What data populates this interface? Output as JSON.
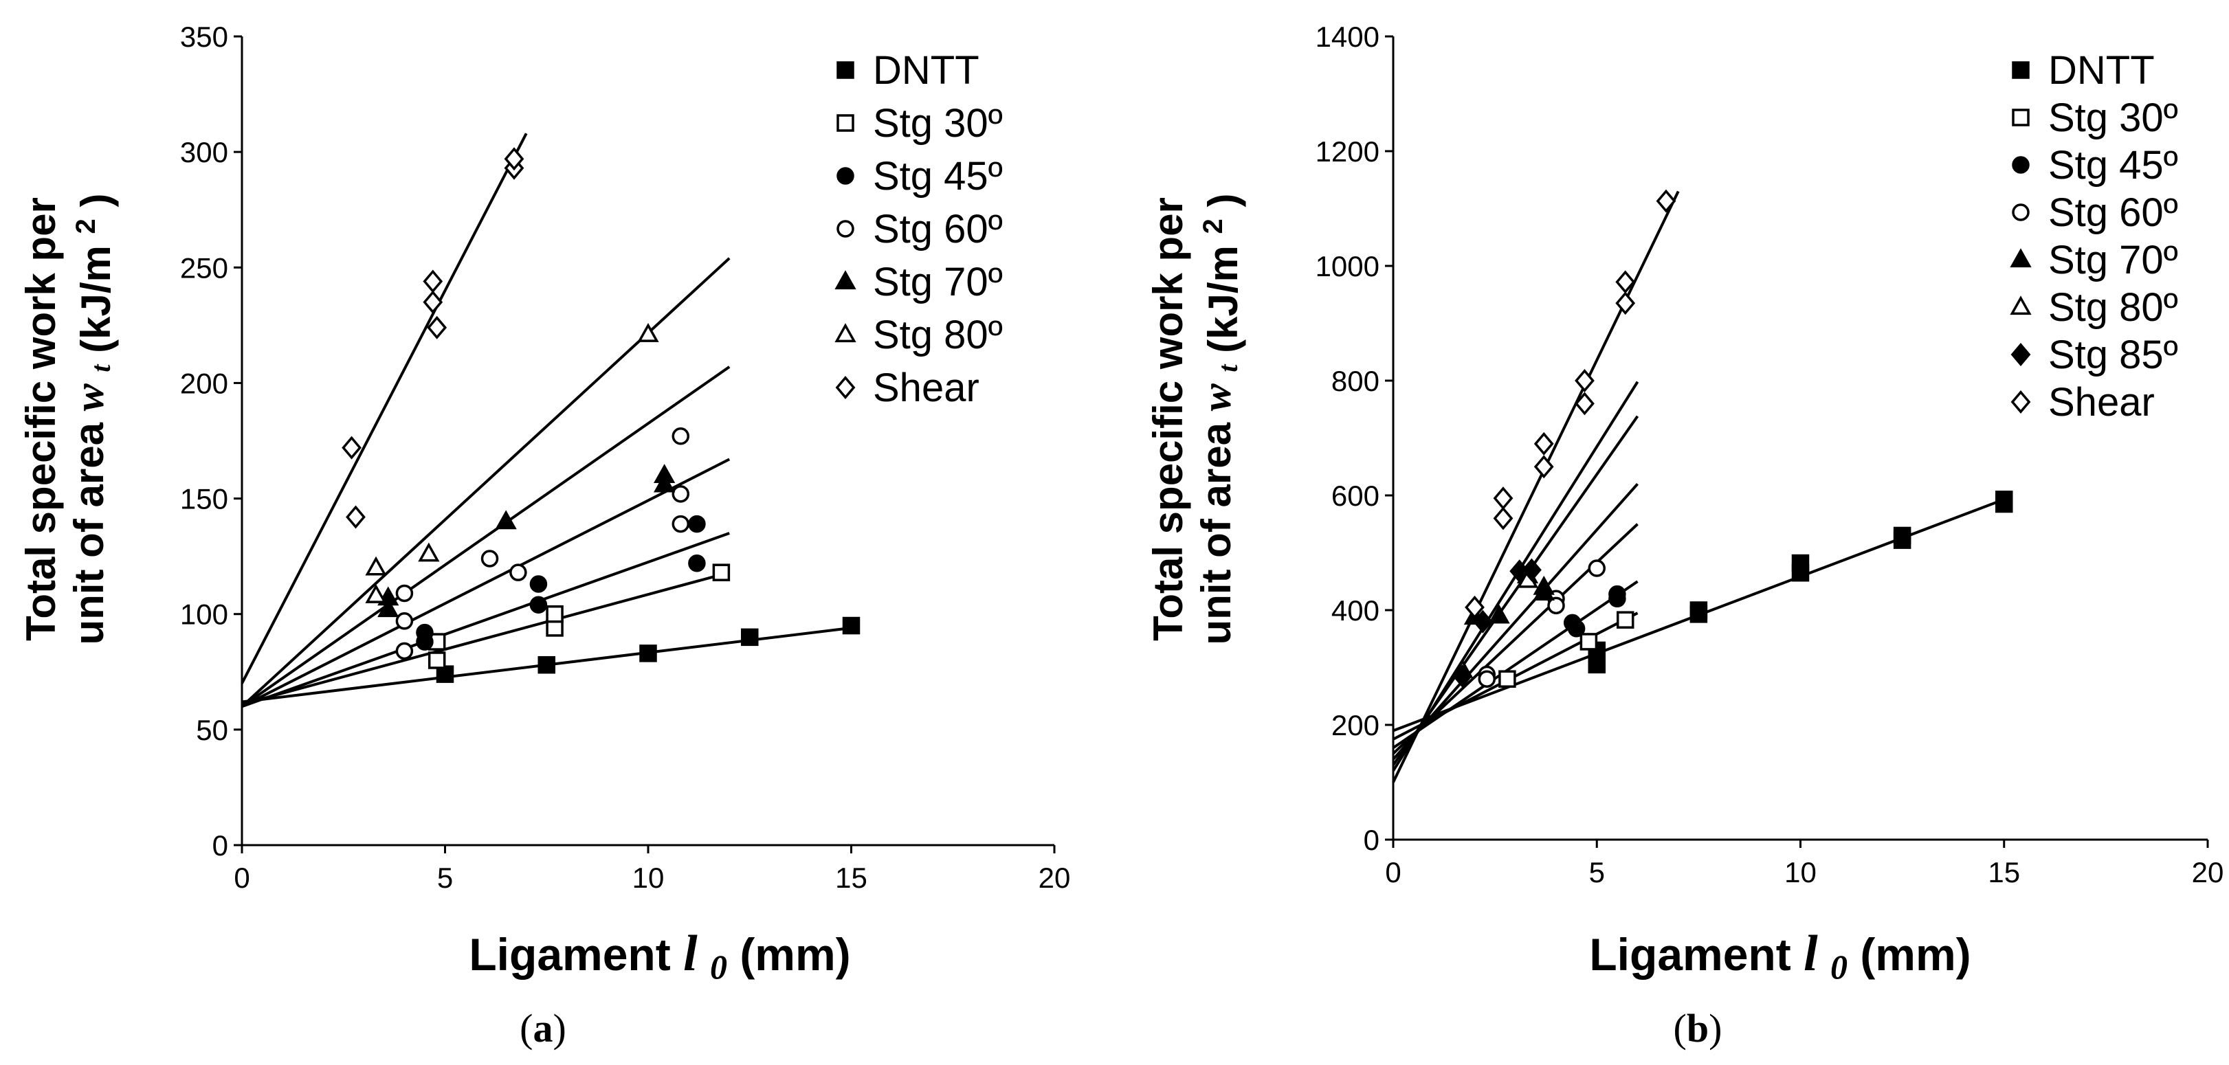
{
  "chart_data": [
    {
      "type": "scatter",
      "caption_prefix": "(",
      "caption_letter": "a",
      "caption_suffix": ")",
      "ylabel_line1": "Total specific work per",
      "ylabel_line2_pre": "unit of area",
      "ylabel_var": "w",
      "ylabel_sub": "t",
      "ylabel_unit_pre": "(kJ/m",
      "ylabel_unit_sup": "2",
      "ylabel_unit_post": ")",
      "xlabel_pre": "Ligament",
      "xlabel_var": "l",
      "xlabel_sub": "0",
      "xlabel_unit": "(mm)",
      "xlim": [
        0,
        20
      ],
      "ylim": [
        0,
        350
      ],
      "xticks": [
        "0",
        "5",
        "10",
        "15",
        "20"
      ],
      "yticks": [
        "0",
        "50",
        "100",
        "150",
        "200",
        "250",
        "300",
        "350"
      ],
      "grid": false,
      "legend_position": "top-right",
      "series": [
        {
          "name": "DNTT",
          "marker": "square-filled",
          "points": [
            [
              5.0,
              74
            ],
            [
              7.5,
              78
            ],
            [
              10.0,
              83
            ],
            [
              12.5,
              90
            ],
            [
              15.0,
              95
            ]
          ],
          "fit": [
            [
              0,
              62
            ],
            [
              15,
              94
            ]
          ]
        },
        {
          "name": "Stg 30º",
          "marker": "square-open",
          "points": [
            [
              4.8,
              80
            ],
            [
              4.8,
              88
            ],
            [
              7.7,
              94
            ],
            [
              7.7,
              100
            ],
            [
              11.8,
              118
            ]
          ],
          "fit": [
            [
              0,
              61
            ],
            [
              12,
              118
            ]
          ]
        },
        {
          "name": "Stg 45º",
          "marker": "circle-filled",
          "points": [
            [
              4.5,
              88
            ],
            [
              4.5,
              92
            ],
            [
              7.3,
              104
            ],
            [
              7.3,
              113
            ],
            [
              11.2,
              122
            ],
            [
              11.2,
              139
            ]
          ],
          "fit": [
            [
              0,
              60
            ],
            [
              12,
              135
            ]
          ]
        },
        {
          "name": "Stg 60º",
          "marker": "circle-open",
          "points": [
            [
              4.0,
              84
            ],
            [
              4.0,
              97
            ],
            [
              4.0,
              109
            ],
            [
              6.1,
              124
            ],
            [
              6.8,
              118
            ],
            [
              10.8,
              139
            ],
            [
              10.8,
              152
            ],
            [
              10.8,
              177
            ]
          ],
          "fit": [
            [
              0,
              60
            ],
            [
              12,
              167
            ]
          ]
        },
        {
          "name": "Stg 70º",
          "marker": "triangle-filled",
          "points": [
            [
              3.6,
              102
            ],
            [
              3.6,
              107
            ],
            [
              6.5,
              140
            ],
            [
              10.4,
              156
            ],
            [
              10.4,
              160
            ]
          ],
          "fit": [
            [
              0,
              60
            ],
            [
              12,
              207
            ]
          ]
        },
        {
          "name": "Stg 80º",
          "marker": "triangle-open",
          "points": [
            [
              3.3,
              108
            ],
            [
              3.3,
              120
            ],
            [
              4.6,
              126
            ],
            [
              10.0,
              221
            ]
          ],
          "fit": [
            [
              0,
              60
            ],
            [
              12,
              254
            ]
          ]
        },
        {
          "name": "Shear",
          "marker": "diamond-open",
          "points": [
            [
              2.7,
              172
            ],
            [
              2.8,
              142
            ],
            [
              4.7,
              235
            ],
            [
              4.7,
              244
            ],
            [
              4.8,
              224
            ],
            [
              6.7,
              293
            ],
            [
              6.7,
              297
            ]
          ],
          "fit": [
            [
              0,
              70
            ],
            [
              7,
              308
            ]
          ]
        }
      ]
    },
    {
      "type": "scatter",
      "caption_prefix": "(",
      "caption_letter": "b",
      "caption_suffix": ")",
      "ylabel_line1": "Total specific work per",
      "ylabel_line2_pre": "unit of area",
      "ylabel_var": "w",
      "ylabel_sub": "t",
      "ylabel_unit_pre": "(kJ/m",
      "ylabel_unit_sup": "2",
      "ylabel_unit_post": ")",
      "xlabel_pre": "Ligament",
      "xlabel_var": "l",
      "xlabel_sub": "0",
      "xlabel_unit": "(mm)",
      "xlim": [
        0,
        20
      ],
      "ylim": [
        0,
        1400
      ],
      "xticks": [
        "0",
        "5",
        "10",
        "15",
        "20"
      ],
      "yticks": [
        "0",
        "200",
        "400",
        "600",
        "800",
        "1000",
        "1200",
        "1400"
      ],
      "grid": false,
      "legend_position": "top-right",
      "series": [
        {
          "name": "DNTT",
          "marker": "square-filled",
          "points": [
            [
              5.0,
              305
            ],
            [
              5.0,
              330
            ],
            [
              7.5,
              393
            ],
            [
              7.5,
              400
            ],
            [
              10.0,
              465
            ],
            [
              10.0,
              482
            ],
            [
              12.5,
              522
            ],
            [
              12.5,
              530
            ],
            [
              15.0,
              585
            ],
            [
              15.0,
              593
            ]
          ],
          "fit": [
            [
              0,
              190
            ],
            [
              15,
              593
            ]
          ]
        },
        {
          "name": "Stg 30º",
          "marker": "square-open",
          "points": [
            [
              2.8,
              280
            ],
            [
              4.8,
              345
            ],
            [
              5.7,
              383
            ]
          ],
          "fit": [
            [
              0,
              175
            ],
            [
              6,
              395
            ]
          ]
        },
        {
          "name": "Stg 45º",
          "marker": "circle-filled",
          "points": [
            [
              4.4,
              378
            ],
            [
              4.5,
              368
            ],
            [
              5.5,
              420
            ],
            [
              5.5,
              428
            ]
          ],
          "fit": [
            [
              0,
              160
            ],
            [
              6,
              450
            ]
          ]
        },
        {
          "name": "Stg 60º",
          "marker": "circle-open",
          "points": [
            [
              2.3,
              288
            ],
            [
              2.3,
              280
            ],
            [
              4.0,
              420
            ],
            [
              4.0,
              408
            ],
            [
              5.0,
              473
            ]
          ],
          "fit": [
            [
              0,
              150
            ],
            [
              6,
              550
            ]
          ]
        },
        {
          "name": "Stg 70º",
          "marker": "triangle-filled",
          "points": [
            [
              2.0,
              388
            ],
            [
              2.6,
              390
            ],
            [
              3.7,
              430
            ],
            [
              3.7,
              440
            ]
          ],
          "fit": [
            [
              0,
              140
            ],
            [
              6,
              620
            ]
          ]
        },
        {
          "name": "Stg 80º",
          "marker": "triangle-open",
          "points": [
            [
              1.7,
              295
            ],
            [
              3.3,
              460
            ],
            [
              3.3,
              452
            ]
          ],
          "fit": [
            [
              0,
              130
            ],
            [
              6,
              738
            ]
          ]
        },
        {
          "name": "Stg 85º",
          "marker": "diamond-filled",
          "points": [
            [
              1.7,
              285
            ],
            [
              2.2,
              380
            ],
            [
              3.1,
              468
            ],
            [
              3.4,
              470
            ]
          ],
          "fit": [
            [
              0,
              120
            ],
            [
              6,
              798
            ]
          ]
        },
        {
          "name": "Shear",
          "marker": "diamond-open",
          "points": [
            [
              2.0,
              405
            ],
            [
              2.7,
              560
            ],
            [
              2.7,
              595
            ],
            [
              3.7,
              650
            ],
            [
              3.7,
              690
            ],
            [
              4.7,
              760
            ],
            [
              4.7,
              800
            ],
            [
              5.7,
              935
            ],
            [
              5.7,
              972
            ],
            [
              6.7,
              1113
            ]
          ],
          "fit": [
            [
              0,
              100
            ],
            [
              7,
              1130
            ]
          ]
        }
      ]
    }
  ]
}
